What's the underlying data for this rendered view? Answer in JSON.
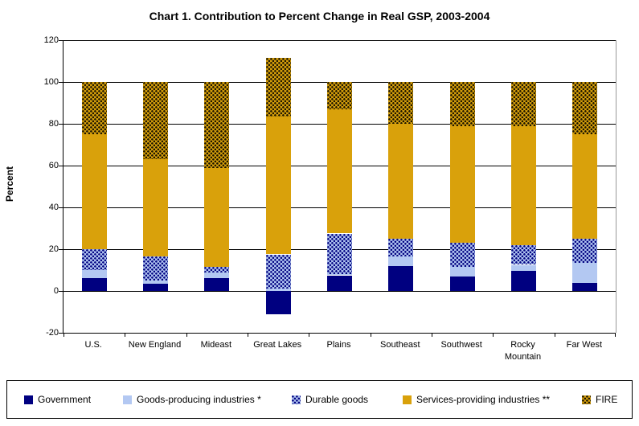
{
  "chart_data": {
    "type": "bar",
    "stacked": true,
    "title": "Chart 1. Contribution to Percent Change in Real GSP, 2003-2004",
    "ylabel": "Percent",
    "ylim": [
      -20,
      120
    ],
    "ytick_step": 20,
    "yticks": [
      -20,
      0,
      20,
      40,
      60,
      80,
      100,
      120
    ],
    "grid": true,
    "legend_position": "bottom",
    "categories": [
      "U.S.",
      "New England",
      "Mideast",
      "Great Lakes",
      "Plains",
      "Southeast",
      "Southwest",
      "Rocky Mountain",
      "Far West"
    ],
    "series": [
      {
        "name": "Government",
        "color": "#000080",
        "pattern": "solid",
        "swatch": "navy-solid",
        "values": [
          6,
          3.5,
          6,
          -11,
          7.5,
          12,
          7,
          9.5,
          4
        ]
      },
      {
        "name": "Goods-producing industries *",
        "color": "#b3c8f2",
        "pattern": "solid",
        "swatch": "blue-solid",
        "values": [
          4,
          1.5,
          3,
          1,
          0.5,
          4.5,
          4.5,
          3,
          9.5
        ]
      },
      {
        "name": "Durable goods",
        "color": "#b3c8f2",
        "pattern": "dots",
        "swatch": "blue-dots",
        "values": [
          10,
          11.5,
          2.5,
          16.5,
          19.5,
          8.5,
          11.5,
          9.5,
          11.5
        ]
      },
      {
        "name": "Services-providing industries **",
        "color": "#d9a10b",
        "pattern": "solid",
        "swatch": "gold-solid",
        "values": [
          55,
          46.5,
          47.5,
          66,
          59.5,
          55,
          56,
          57,
          50
        ]
      },
      {
        "name": "FIRE",
        "color": "#d9a10b",
        "pattern": "dots",
        "swatch": "gold-dots",
        "values": [
          25,
          37,
          41,
          28,
          13,
          20,
          21,
          21,
          25
        ]
      }
    ]
  }
}
